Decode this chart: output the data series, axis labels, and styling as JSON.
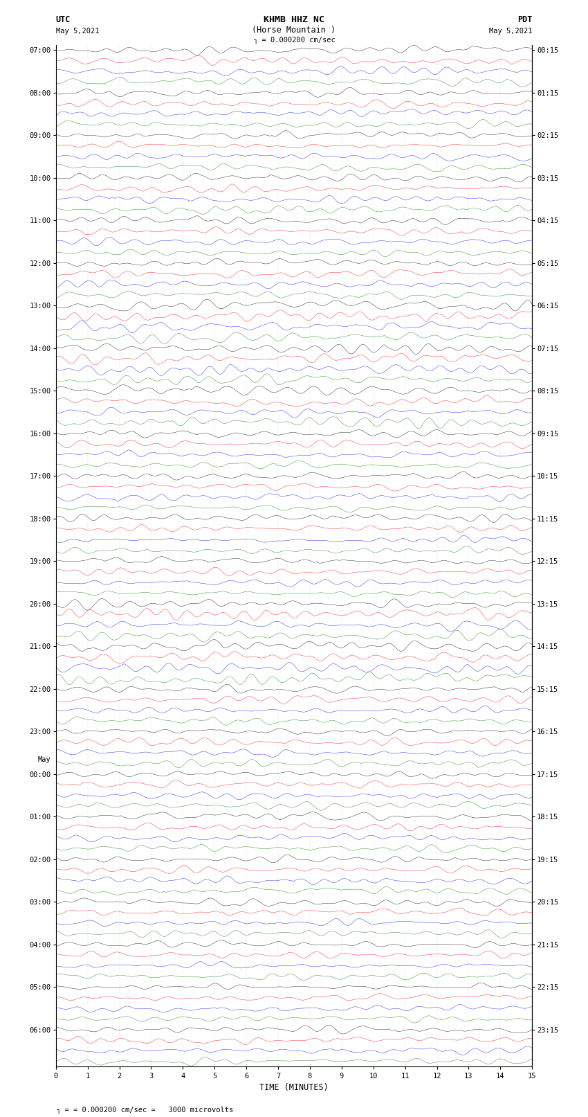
{
  "title_line1": "KHMB HHZ NC",
  "title_line2": "(Horse Mountain )",
  "scale_bar_label": "= 0.000200 cm/sec",
  "utc_label": "UTC",
  "pdt_label": "PDT",
  "date_left": "May 5,2021",
  "date_right": "May 5,2021",
  "xlabel": "TIME (MINUTES)",
  "xmin": 0,
  "xmax": 15,
  "xticks": [
    0,
    1,
    2,
    3,
    4,
    5,
    6,
    7,
    8,
    9,
    10,
    11,
    12,
    13,
    14,
    15
  ],
  "trace_colors": [
    "black",
    "red",
    "blue",
    "green"
  ],
  "n_traces_per_hour": 4,
  "utc_times": [
    "07:00",
    "08:00",
    "09:00",
    "10:00",
    "11:00",
    "12:00",
    "13:00",
    "14:00",
    "15:00",
    "16:00",
    "17:00",
    "18:00",
    "19:00",
    "20:00",
    "21:00",
    "22:00",
    "23:00",
    "00:00",
    "01:00",
    "02:00",
    "03:00",
    "04:00",
    "05:00",
    "06:00"
  ],
  "pdt_times": [
    "00:15",
    "01:15",
    "02:15",
    "03:15",
    "04:15",
    "05:15",
    "06:15",
    "07:15",
    "08:15",
    "09:15",
    "10:15",
    "11:15",
    "12:15",
    "13:15",
    "14:15",
    "15:15",
    "16:15",
    "17:15",
    "18:15",
    "19:15",
    "20:15",
    "21:15",
    "22:15",
    "23:15"
  ],
  "may_transition_hour": 17,
  "n_hours": 24,
  "fig_width": 8.5,
  "fig_height": 16.13,
  "bg_color": "white",
  "seed": 42,
  "bottom_label": "= 0.000200 cm/sec =   3000 microvolts",
  "grid_color": "#cccccc",
  "grid_alpha": 0.5,
  "lw": 0.28
}
